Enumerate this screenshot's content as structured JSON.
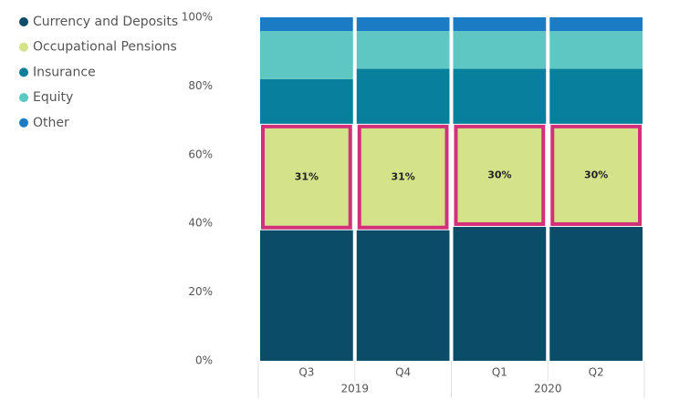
{
  "chart_data": {
    "type": "stacked_bar_100",
    "categories": [
      "Q3",
      "Q4",
      "Q1",
      "Q2"
    ],
    "groups": [
      "2019",
      "2019",
      "2020",
      "2020"
    ],
    "series": [
      {
        "name": "Currency and Deposits",
        "color": "#0b4d68",
        "values": [
          38,
          38,
          39,
          39
        ]
      },
      {
        "name": "Occupational Pensions",
        "color": "#d4e38a",
        "values": [
          31,
          31,
          30,
          30
        ],
        "value_labels": [
          "31%",
          "31%",
          "30%",
          "30%"
        ]
      },
      {
        "name": "Insurance",
        "color": "#087f9c",
        "values": [
          13,
          16,
          16,
          16
        ]
      },
      {
        "name": "Equity",
        "color": "#5ec6c3",
        "values": [
          14,
          11,
          11,
          11
        ]
      },
      {
        "name": "Other",
        "color": "#1b7bc4",
        "values": [
          4,
          4,
          4,
          4
        ]
      }
    ],
    "ylim": [
      0,
      100
    ],
    "yticks": [
      {
        "value": 0,
        "label": "0%"
      },
      {
        "value": 20,
        "label": "20%"
      },
      {
        "value": 40,
        "label": "40%"
      },
      {
        "value": 60,
        "label": "60%"
      },
      {
        "value": 80,
        "label": "80%"
      },
      {
        "value": 100,
        "label": "100%"
      }
    ],
    "legend": "top-left"
  }
}
